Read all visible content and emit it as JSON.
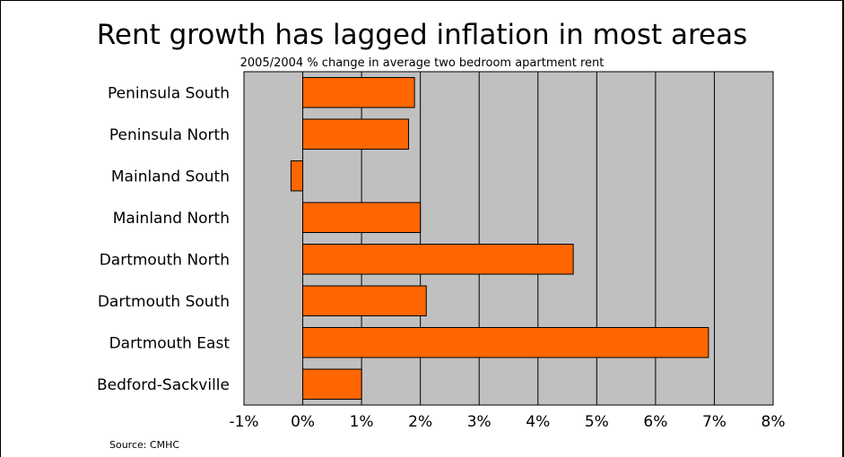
{
  "chart_data": {
    "type": "bar",
    "orientation": "horizontal",
    "title": "Rent growth has lagged inflation in most areas",
    "subtitle": "2005/2004 % change in average two bedroom apartment rent",
    "source": "Source: CMHC",
    "categories": [
      "Peninsula South",
      "Peninsula North",
      "Mainland South",
      "Mainland North",
      "Dartmouth North",
      "Dartmouth South",
      "Dartmouth East",
      "Bedford-Sackville"
    ],
    "values": [
      1.9,
      1.8,
      -0.2,
      2.0,
      4.6,
      2.1,
      6.9,
      1.0
    ],
    "xlim": [
      -1,
      8
    ],
    "xticks": [
      "-1%",
      "0%",
      "1%",
      "2%",
      "3%",
      "4%",
      "5%",
      "6%",
      "7%",
      "8%"
    ],
    "bar_color": "#ff6600",
    "plot_background": "#c0c0c0",
    "grid": true
  }
}
